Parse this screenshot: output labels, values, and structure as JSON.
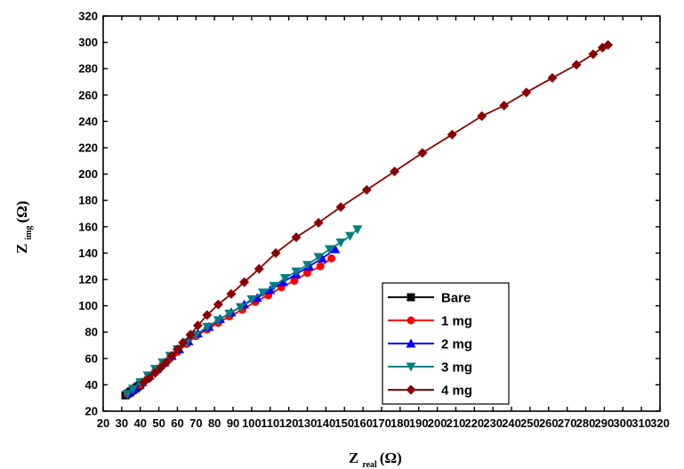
{
  "chart_data": {
    "type": "scatter",
    "title": "",
    "xlabel": {
      "main": "Z",
      "sub": "real",
      "unit": "(Ω)"
    },
    "ylabel": {
      "main": "Z",
      "sub": "img",
      "unit": "(Ω)"
    },
    "xlim": [
      20,
      320
    ],
    "ylim": [
      20,
      320
    ],
    "xticks": [
      20,
      30,
      40,
      50,
      60,
      70,
      80,
      90,
      100,
      110,
      120,
      130,
      140,
      150,
      160,
      170,
      180,
      190,
      200,
      210,
      220,
      230,
      240,
      250,
      260,
      270,
      280,
      290,
      300,
      310,
      320
    ],
    "yticks": [
      20,
      40,
      60,
      80,
      100,
      120,
      140,
      160,
      180,
      200,
      220,
      240,
      260,
      280,
      300,
      320
    ],
    "grid": false,
    "legend_position": "bottom-right",
    "series": [
      {
        "name": "Bare",
        "color": "#000000",
        "marker": "square",
        "x": [
          32,
          33,
          34,
          35,
          36,
          37,
          38,
          39,
          40
        ],
        "y": [
          32,
          33,
          34,
          35,
          36,
          37,
          38,
          39,
          40
        ]
      },
      {
        "name": "1  mg",
        "color": "#ff0000",
        "marker": "circle",
        "x": [
          33,
          36,
          40,
          44,
          48,
          52,
          56,
          60,
          65,
          70,
          76,
          82,
          88,
          95,
          102,
          109,
          116,
          123,
          130,
          137,
          143
        ],
        "y": [
          33,
          36,
          40,
          45,
          50,
          55,
          60,
          65,
          71,
          77,
          82,
          87,
          92,
          97,
          103,
          108,
          114,
          119,
          125,
          130,
          136
        ]
      },
      {
        "name": "2  mg",
        "color": "#0000ff",
        "marker": "triangle-up",
        "x": [
          34,
          37,
          41,
          45,
          49,
          53,
          57,
          61,
          66,
          71,
          77,
          83,
          89,
          96,
          103,
          110,
          117,
          124,
          131,
          138,
          145
        ],
        "y": [
          34,
          37,
          42,
          47,
          52,
          57,
          62,
          67,
          73,
          79,
          84,
          90,
          95,
          101,
          106,
          112,
          118,
          124,
          130,
          136,
          143
        ]
      },
      {
        "name": "3  mg",
        "color": "#008080",
        "marker": "triangle-down",
        "x": [
          33,
          36,
          40,
          44,
          48,
          52,
          56,
          60,
          65,
          70,
          76,
          82,
          88,
          94,
          100,
          106,
          112,
          118,
          124,
          130,
          136,
          142,
          148,
          153,
          157
        ],
        "y": [
          33,
          37,
          42,
          47,
          52,
          57,
          62,
          67,
          72,
          78,
          84,
          89,
          94,
          99,
          105,
          110,
          115,
          121,
          126,
          131,
          137,
          143,
          148,
          153,
          158
        ]
      },
      {
        "name": "4  mg",
        "color": "#8b0000",
        "marker": "diamond",
        "x": [
          42,
          45,
          48,
          51,
          54,
          57,
          60,
          63,
          67,
          71,
          76,
          82,
          89,
          96,
          104,
          113,
          124,
          136,
          148,
          162,
          177,
          192,
          208,
          224,
          236,
          248,
          262,
          275,
          284,
          289,
          292
        ],
        "y": [
          42,
          45,
          49,
          53,
          57,
          62,
          67,
          72,
          78,
          85,
          93,
          101,
          109,
          118,
          128,
          140,
          152,
          163,
          175,
          188,
          202,
          216,
          230,
          244,
          252,
          262,
          273,
          283,
          291,
          296,
          298
        ]
      }
    ]
  }
}
